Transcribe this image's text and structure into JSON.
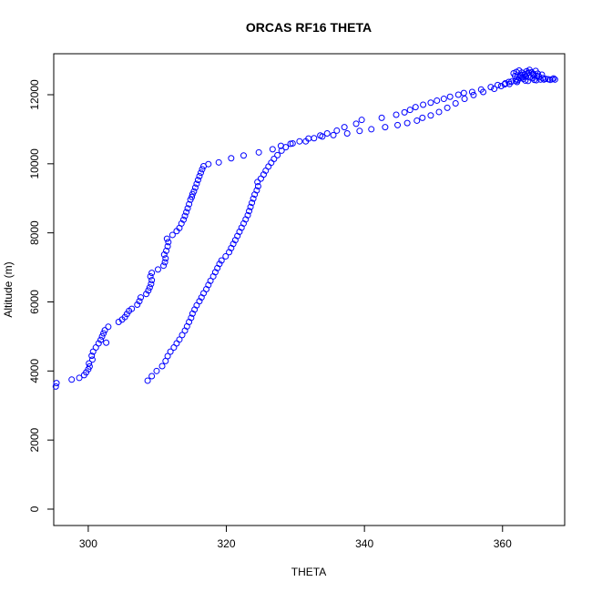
{
  "chart_data": {
    "type": "scatter",
    "title": "ORCAS RF16 THETA",
    "xlabel": "THETA",
    "ylabel": "Altitude (m)",
    "xlim": [
      295,
      369
    ],
    "ylim": [
      0,
      13000
    ],
    "x_ticks": [
      300,
      320,
      340,
      360
    ],
    "y_ticks": [
      0,
      2000,
      4000,
      6000,
      8000,
      10000,
      12000
    ],
    "marker": "open-circle",
    "marker_color": "#0000ff",
    "grid": false,
    "series": [
      {
        "points": [
          [
            295.3,
            3550
          ],
          [
            295.4,
            3650
          ],
          [
            297.6,
            3750
          ],
          [
            298.7,
            3800
          ],
          [
            299.4,
            3880
          ],
          [
            299.7,
            3960
          ],
          [
            300.0,
            4050
          ],
          [
            300.2,
            4130
          ],
          [
            300.1,
            4220
          ],
          [
            300.6,
            4330
          ],
          [
            300.5,
            4440
          ],
          [
            300.7,
            4560
          ],
          [
            301.1,
            4680
          ],
          [
            301.5,
            4800
          ],
          [
            301.8,
            4900
          ],
          [
            302.0,
            5000
          ],
          [
            302.2,
            5090
          ],
          [
            302.4,
            5180
          ],
          [
            302.6,
            4820
          ],
          [
            302.9,
            5280
          ],
          [
            304.4,
            5420
          ],
          [
            304.9,
            5490
          ],
          [
            305.3,
            5560
          ],
          [
            305.6,
            5650
          ],
          [
            305.9,
            5740
          ],
          [
            306.3,
            5800
          ],
          [
            307.1,
            5920
          ],
          [
            307.4,
            6020
          ],
          [
            307.6,
            6130
          ],
          [
            308.4,
            6230
          ],
          [
            308.7,
            6330
          ],
          [
            308.9,
            6420
          ],
          [
            309.1,
            6520
          ],
          [
            309.2,
            6630
          ],
          [
            309.0,
            6740
          ],
          [
            309.2,
            6840
          ],
          [
            310.1,
            6940
          ],
          [
            310.9,
            7050
          ],
          [
            311.1,
            7150
          ],
          [
            311.2,
            7260
          ],
          [
            311.0,
            7370
          ],
          [
            311.3,
            7480
          ],
          [
            311.5,
            7610
          ],
          [
            311.6,
            7730
          ],
          [
            311.4,
            7830
          ],
          [
            312.2,
            7940
          ],
          [
            312.8,
            8050
          ],
          [
            313.2,
            8140
          ],
          [
            313.5,
            8270
          ],
          [
            313.8,
            8380
          ],
          [
            314.0,
            8490
          ],
          [
            314.2,
            8600
          ],
          [
            314.4,
            8710
          ],
          [
            314.6,
            8830
          ],
          [
            314.8,
            8960
          ],
          [
            315.0,
            9040
          ],
          [
            315.1,
            9120
          ],
          [
            315.3,
            9200
          ],
          [
            315.5,
            9310
          ],
          [
            315.7,
            9420
          ],
          [
            315.9,
            9530
          ],
          [
            316.1,
            9640
          ],
          [
            316.3,
            9740
          ],
          [
            316.5,
            9840
          ],
          [
            316.7,
            9930
          ],
          [
            317.4,
            9990
          ],
          [
            318.9,
            10040
          ],
          [
            320.7,
            10160
          ],
          [
            322.5,
            10240
          ],
          [
            324.7,
            10330
          ],
          [
            326.7,
            10420
          ],
          [
            327.9,
            10520
          ],
          [
            329.6,
            10590
          ],
          [
            331.5,
            10650
          ],
          [
            332.7,
            10740
          ],
          [
            333.6,
            10820
          ],
          [
            334.6,
            10880
          ],
          [
            336.0,
            10960
          ],
          [
            337.1,
            11060
          ],
          [
            338.8,
            11160
          ],
          [
            339.6,
            11270
          ],
          [
            342.5,
            11330
          ],
          [
            344.6,
            11420
          ],
          [
            345.8,
            11490
          ],
          [
            346.6,
            11560
          ],
          [
            347.4,
            11640
          ],
          [
            348.5,
            11710
          ],
          [
            349.6,
            11770
          ],
          [
            350.5,
            11830
          ],
          [
            351.5,
            11880
          ],
          [
            352.4,
            11940
          ],
          [
            353.6,
            12000
          ],
          [
            354.4,
            12050
          ],
          [
            355.6,
            12080
          ],
          [
            356.9,
            12150
          ],
          [
            358.3,
            12220
          ],
          [
            359.3,
            12280
          ],
          [
            360.4,
            12330
          ],
          [
            361.3,
            12380
          ],
          [
            362.0,
            12450
          ],
          [
            362.6,
            12530
          ],
          [
            363.2,
            12590
          ],
          [
            363.8,
            12640
          ],
          [
            364.5,
            12600
          ],
          [
            365.0,
            12540
          ],
          [
            365.8,
            12480
          ],
          [
            366.6,
            12450
          ],
          [
            367.6,
            12440
          ]
        ]
      },
      {
        "points": [
          [
            308.6,
            3720
          ],
          [
            309.2,
            3850
          ],
          [
            309.9,
            4000
          ],
          [
            310.7,
            4140
          ],
          [
            311.2,
            4290
          ],
          [
            311.5,
            4430
          ],
          [
            311.9,
            4560
          ],
          [
            312.4,
            4680
          ],
          [
            312.8,
            4800
          ],
          [
            313.2,
            4910
          ],
          [
            313.6,
            5040
          ],
          [
            314.0,
            5170
          ],
          [
            314.3,
            5290
          ],
          [
            314.6,
            5420
          ],
          [
            314.9,
            5540
          ],
          [
            315.1,
            5660
          ],
          [
            315.4,
            5780
          ],
          [
            315.7,
            5900
          ],
          [
            316.1,
            6020
          ],
          [
            316.4,
            6130
          ],
          [
            316.7,
            6250
          ],
          [
            317.1,
            6370
          ],
          [
            317.4,
            6490
          ],
          [
            317.7,
            6610
          ],
          [
            318.1,
            6740
          ],
          [
            318.4,
            6860
          ],
          [
            318.7,
            6980
          ],
          [
            319.0,
            7100
          ],
          [
            319.3,
            7200
          ],
          [
            319.9,
            7320
          ],
          [
            320.4,
            7440
          ],
          [
            320.7,
            7560
          ],
          [
            321.0,
            7680
          ],
          [
            321.3,
            7790
          ],
          [
            321.6,
            7910
          ],
          [
            321.9,
            8030
          ],
          [
            322.2,
            8150
          ],
          [
            322.5,
            8270
          ],
          [
            322.8,
            8390
          ],
          [
            323.1,
            8510
          ],
          [
            323.3,
            8630
          ],
          [
            323.5,
            8750
          ],
          [
            323.7,
            8870
          ],
          [
            323.9,
            8990
          ],
          [
            324.1,
            9110
          ],
          [
            324.4,
            9230
          ],
          [
            324.6,
            9350
          ],
          [
            324.5,
            9470
          ],
          [
            325.0,
            9570
          ],
          [
            325.4,
            9690
          ],
          [
            325.7,
            9800
          ],
          [
            326.1,
            9920
          ],
          [
            326.5,
            10030
          ],
          [
            326.9,
            10140
          ],
          [
            327.4,
            10250
          ],
          [
            328.0,
            10380
          ],
          [
            328.6,
            10480
          ],
          [
            329.3,
            10580
          ],
          [
            330.6,
            10650
          ],
          [
            331.9,
            10730
          ],
          [
            333.9,
            10790
          ],
          [
            335.5,
            10830
          ],
          [
            337.5,
            10880
          ],
          [
            339.3,
            10950
          ],
          [
            341.0,
            11000
          ],
          [
            343.0,
            11060
          ],
          [
            344.8,
            11120
          ],
          [
            346.2,
            11180
          ],
          [
            347.6,
            11250
          ],
          [
            348.4,
            11330
          ],
          [
            349.6,
            11400
          ],
          [
            350.8,
            11500
          ],
          [
            352.0,
            11620
          ],
          [
            353.2,
            11750
          ],
          [
            354.5,
            11880
          ],
          [
            355.8,
            11990
          ],
          [
            357.2,
            12080
          ],
          [
            358.8,
            12170
          ],
          [
            359.8,
            12250
          ],
          [
            361.0,
            12310
          ],
          [
            362.1,
            12370
          ],
          [
            363.3,
            12410
          ],
          [
            364.6,
            12430
          ],
          [
            366.0,
            12440
          ],
          [
            367.2,
            12450
          ]
        ]
      },
      {
        "points": [
          [
            361.6,
            12620
          ],
          [
            362.0,
            12660
          ],
          [
            362.4,
            12700
          ],
          [
            362.8,
            12640
          ],
          [
            363.2,
            12580
          ],
          [
            363.5,
            12680
          ],
          [
            363.9,
            12720
          ],
          [
            364.2,
            12650
          ],
          [
            364.5,
            12560
          ],
          [
            364.8,
            12690
          ],
          [
            365.1,
            12610
          ],
          [
            365.3,
            12520
          ],
          [
            364.0,
            12500
          ],
          [
            363.0,
            12460
          ],
          [
            362.2,
            12420
          ],
          [
            361.8,
            12540
          ],
          [
            362.6,
            12580
          ],
          [
            363.6,
            12620
          ],
          [
            364.4,
            12480
          ],
          [
            365.5,
            12440
          ],
          [
            366.2,
            12460
          ],
          [
            366.9,
            12430
          ],
          [
            367.4,
            12470
          ],
          [
            363.4,
            12520
          ],
          [
            364.9,
            12420
          ],
          [
            362.9,
            12500
          ],
          [
            365.7,
            12580
          ],
          [
            361.9,
            12400
          ],
          [
            360.9,
            12370
          ],
          [
            360.3,
            12300
          ],
          [
            363.7,
            12400
          ],
          [
            362.4,
            12480
          ]
        ]
      }
    ]
  }
}
